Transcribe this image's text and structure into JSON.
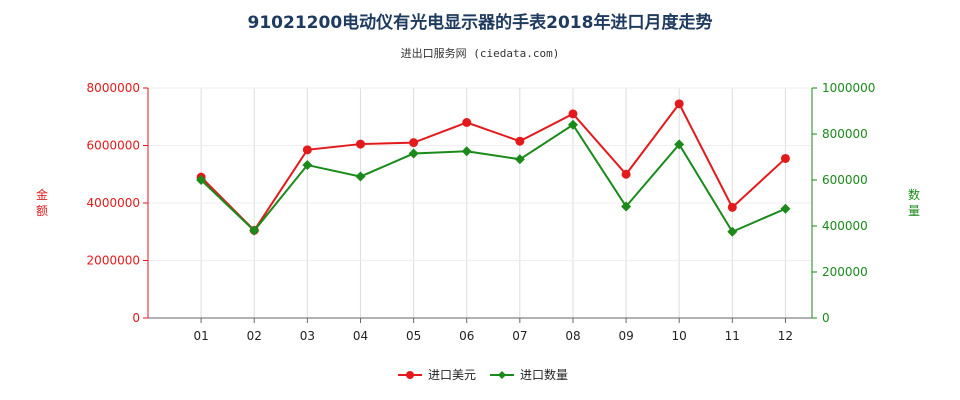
{
  "page": {
    "title": "91021200电动仪有光电显示器的手表2018年进口月度走势",
    "subtitle": "进出口服务网 (ciedata.com)"
  },
  "chart_data": {
    "type": "line",
    "categories": [
      "01",
      "02",
      "03",
      "04",
      "05",
      "06",
      "07",
      "08",
      "09",
      "10",
      "11",
      "12"
    ],
    "left_axis": {
      "label": "金额",
      "ylim": [
        0,
        8000000
      ],
      "ticks": [
        "0",
        "2000000",
        "4000000",
        "6000000",
        "8000000"
      ],
      "color": "#e31a1c"
    },
    "right_axis": {
      "label": "数量",
      "ylim": [
        0,
        1000000
      ],
      "ticks": [
        "0",
        "200000",
        "400000",
        "600000",
        "800000",
        "1000000"
      ],
      "color": "#1a8a1a"
    },
    "series": [
      {
        "name": "进口美元",
        "axis": "left",
        "color": "#e31a1c",
        "values": [
          4900000,
          3050000,
          5850000,
          6050000,
          6100000,
          6800000,
          6150000,
          7100000,
          5000000,
          7450000,
          3850000,
          5550000
        ]
      },
      {
        "name": "进口数量",
        "axis": "right",
        "color": "#1a8a1a",
        "values": [
          600000,
          380000,
          665000,
          615000,
          715000,
          725000,
          690000,
          840000,
          485000,
          755000,
          375000,
          475000
        ]
      }
    ],
    "grid": "vertical"
  }
}
